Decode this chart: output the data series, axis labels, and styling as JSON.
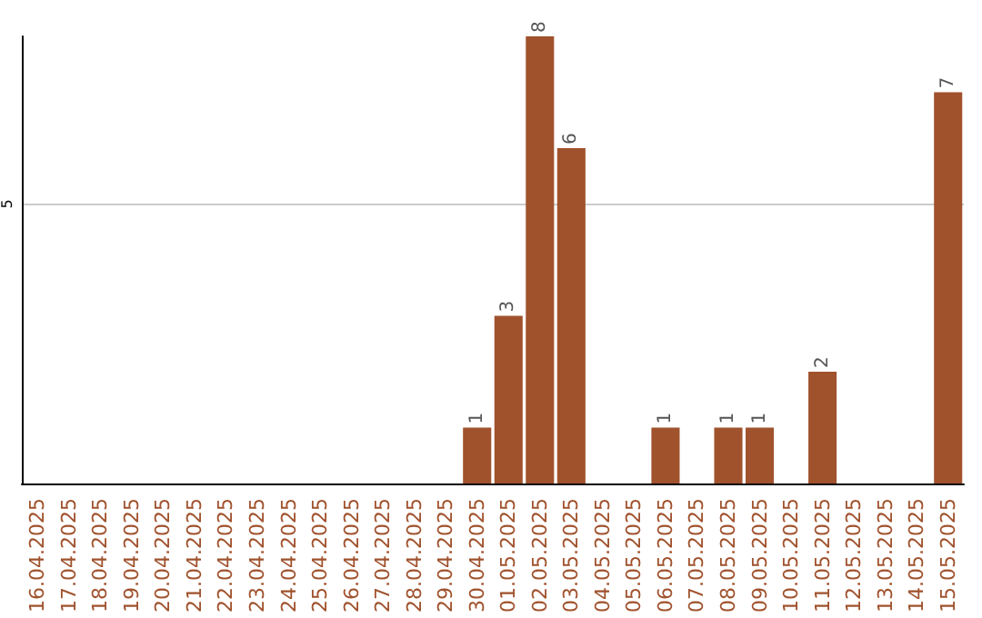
{
  "chart_data": {
    "type": "bar",
    "categories": [
      "16.04.2025",
      "17.04.2025",
      "18.04.2025",
      "19.04.2025",
      "20.04.2025",
      "21.04.2025",
      "22.04.2025",
      "23.04.2025",
      "24.04.2025",
      "25.04.2025",
      "26.04.2025",
      "27.04.2025",
      "28.04.2025",
      "29.04.2025",
      "30.04.2025",
      "01.05.2025",
      "02.05.2025",
      "03.05.2025",
      "04.05.2025",
      "05.05.2025",
      "06.05.2025",
      "07.05.2025",
      "08.05.2025",
      "09.05.2025",
      "10.05.2025",
      "11.05.2025",
      "12.05.2025",
      "13.05.2025",
      "14.05.2025",
      "15.05.2025"
    ],
    "values": [
      null,
      null,
      null,
      null,
      null,
      null,
      null,
      null,
      null,
      null,
      null,
      null,
      null,
      null,
      1,
      3,
      8,
      6,
      null,
      null,
      1,
      null,
      1,
      1,
      null,
      2,
      null,
      null,
      null,
      7
    ],
    "color": "#a0522d",
    "ylim": [
      0,
      8
    ],
    "yticks": [
      5
    ],
    "grid": "y",
    "data_labels": true
  }
}
